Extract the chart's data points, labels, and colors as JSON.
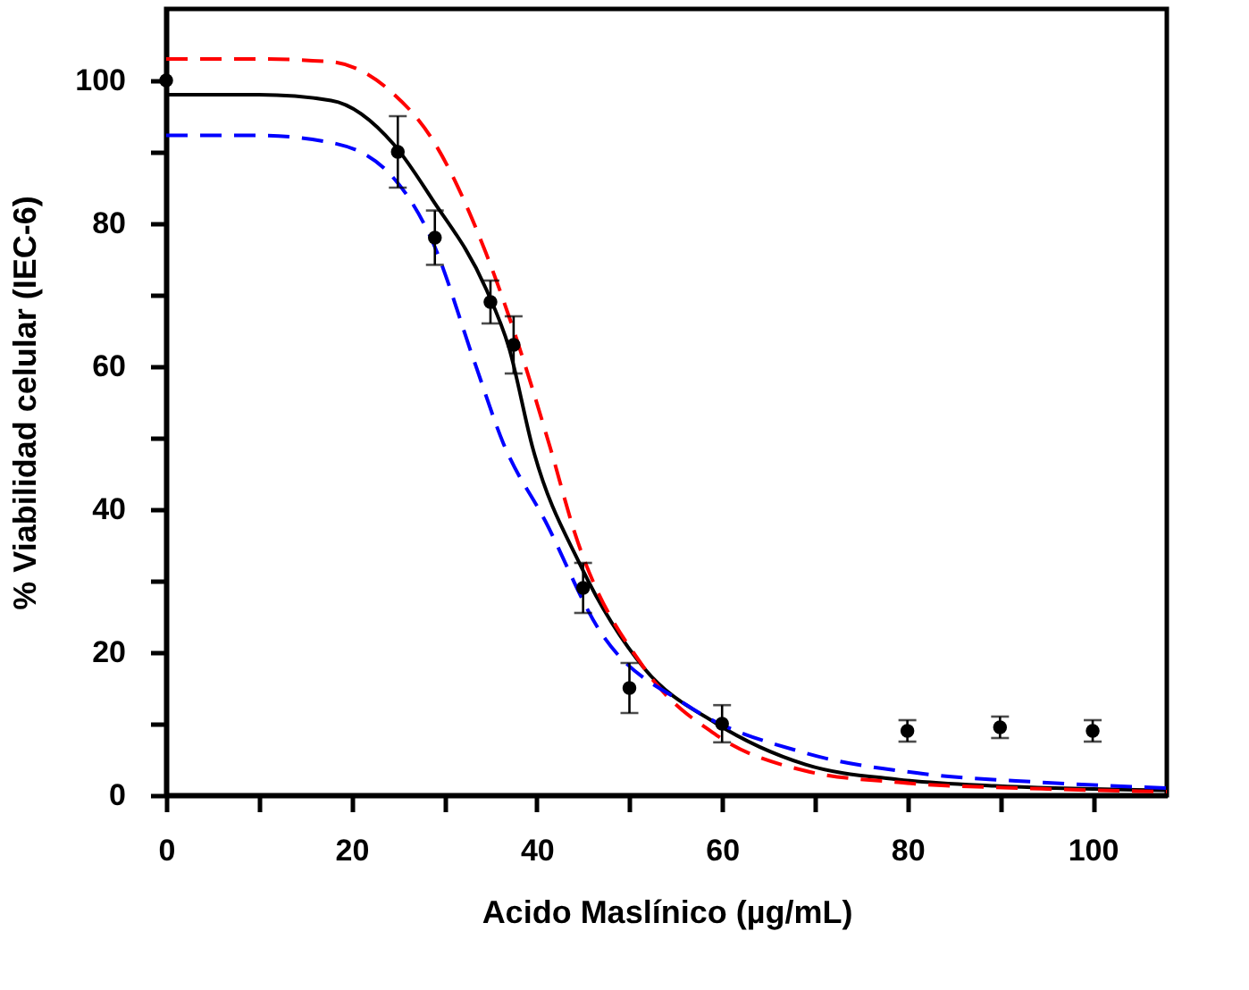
{
  "chart_data": {
    "type": "scatter",
    "xlabel": "Acido Maslínico (µg/mL)",
    "ylabel": "% Viabilidad celular (IEC-6)",
    "xlim": [
      0,
      108
    ],
    "ylim": [
      0,
      110
    ],
    "xticks": [
      0,
      {
        "value": 10,
        "label": null
      },
      20,
      {
        "value": 30,
        "label": null
      },
      40,
      {
        "value": 50,
        "label": null
      },
      60,
      {
        "value": 70,
        "label": null
      },
      80,
      {
        "value": 90,
        "label": null
      },
      100
    ],
    "yticks": [
      0,
      {
        "value": 10,
        "label": null
      },
      20,
      {
        "value": 30,
        "label": null
      },
      40,
      {
        "value": 50,
        "label": null
      },
      60,
      {
        "value": 70,
        "label": null
      },
      80,
      {
        "value": 90,
        "label": null
      },
      100
    ],
    "grid": false,
    "series": [
      {
        "type": "scatter",
        "color": "#000000",
        "marker": "circle",
        "x": [
          0,
          25,
          29,
          35,
          37.5,
          45,
          50,
          60,
          80,
          90,
          100
        ],
        "values": [
          100,
          90,
          78,
          69,
          63,
          29,
          15,
          10,
          9,
          9.5,
          9
        ],
        "errors": [
          null,
          5,
          3.8,
          3,
          4,
          3.5,
          3.5,
          2.6,
          1.5,
          1.5,
          1.5
        ]
      },
      {
        "type": "line",
        "color": "#000000",
        "line_style": "solid",
        "marker": "none",
        "x": [
          0,
          10,
          17.8,
          24.6,
          28.7,
          34.5,
          37,
          39.6,
          44.7,
          51.7,
          59.3,
          69,
          79,
          89.4,
          108
        ],
        "values": [
          98,
          98,
          97.2,
          91,
          83.4,
          70.9,
          62.6,
          48.4,
          32.2,
          17.6,
          10.1,
          4.3,
          2.2,
          1.3,
          0.7
        ]
      },
      {
        "type": "line",
        "color": "#ff0000",
        "line_style": "dashed",
        "marker": "none",
        "x": [
          0,
          10,
          17.8,
          24.3,
          28.7,
          34.5,
          37.7,
          41.5,
          44.1,
          51.7,
          59.4,
          69,
          79,
          94.5,
          108
        ],
        "values": [
          103,
          103,
          102.6,
          98.4,
          91.8,
          75.9,
          64.3,
          48.4,
          36.7,
          17.6,
          8.4,
          3.4,
          1.8,
          0.9,
          0.5
        ]
      },
      {
        "type": "line",
        "color": "#0000ff",
        "line_style": "dashed",
        "marker": "none",
        "x": [
          0,
          10,
          17.8,
          24.3,
          28.7,
          33.2,
          36.4,
          40.9,
          46.6,
          56.2,
          69,
          81.7,
          94.5,
          108
        ],
        "values": [
          92.3,
          92.3,
          91.3,
          86.7,
          77.6,
          60.9,
          49.2,
          38.4,
          23.4,
          12.6,
          5.9,
          3,
          1.8,
          1
        ]
      }
    ]
  }
}
